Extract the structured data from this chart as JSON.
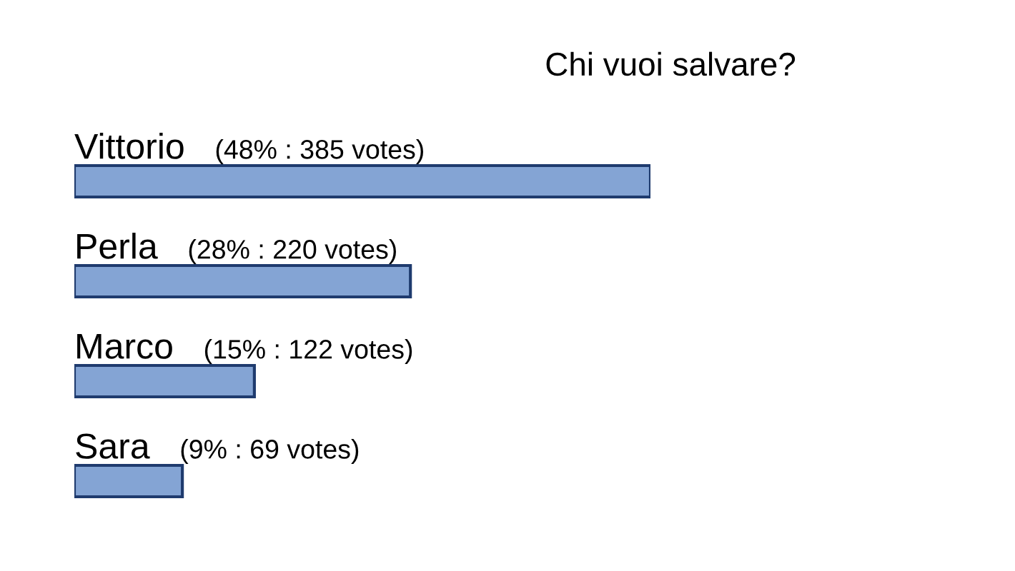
{
  "chart_data": {
    "type": "bar",
    "orientation": "horizontal",
    "title": "Chi vuoi salvare?",
    "categories": [
      "Vittorio",
      "Perla",
      "Marco",
      "Sara"
    ],
    "values": [
      48,
      28,
      15,
      9
    ],
    "value_labels": [
      "(48% : 385 votes)",
      "(28% : 220 votes)",
      "(15% : 122 votes)",
      "(9% : 69 votes)"
    ],
    "color": "#84a4d4",
    "tick_labels": "y"
  }
}
